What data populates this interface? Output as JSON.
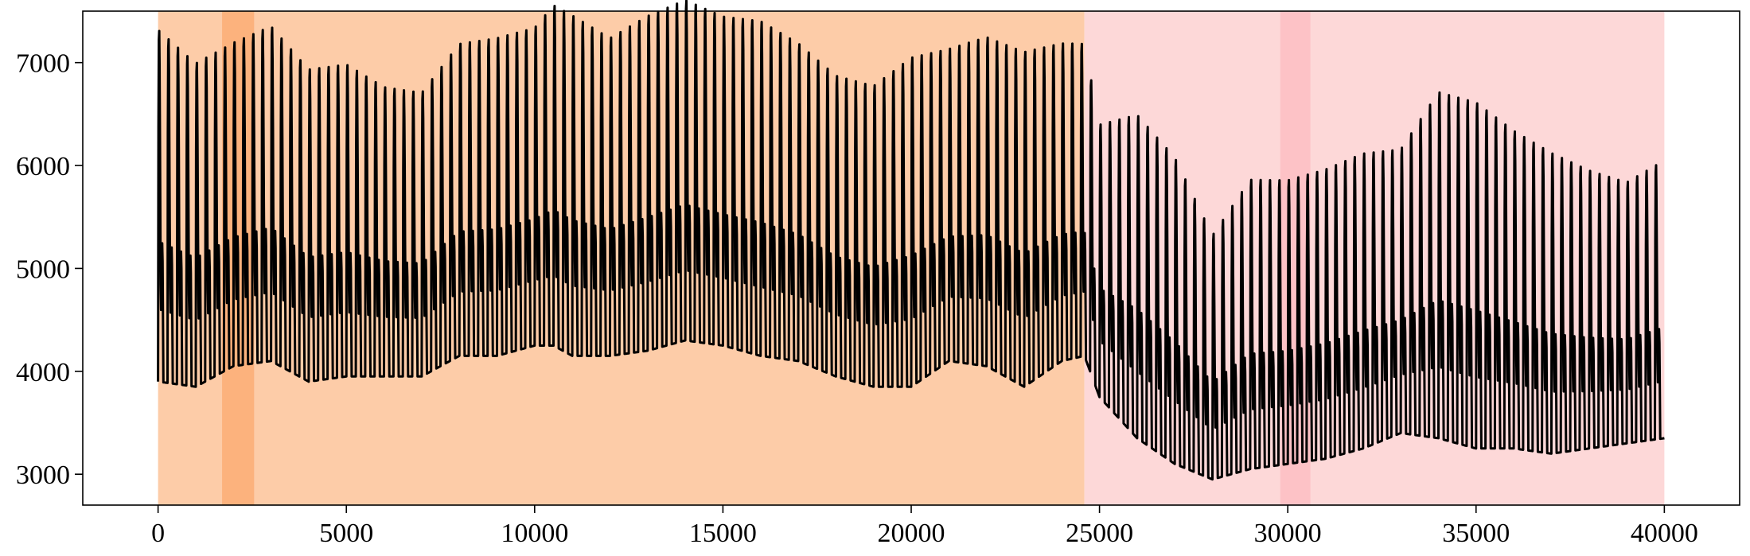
{
  "chart_data": {
    "type": "line",
    "title": "",
    "xlabel": "",
    "ylabel": "",
    "xlim": [
      -2000,
      42000
    ],
    "ylim": [
      2700,
      7500
    ],
    "x_ticks": [
      {
        "value": 0,
        "label": "0"
      },
      {
        "value": 5000,
        "label": "5000"
      },
      {
        "value": 10000,
        "label": "10000"
      },
      {
        "value": 15000,
        "label": "15000"
      },
      {
        "value": 20000,
        "label": "20000"
      },
      {
        "value": 25000,
        "label": "25000"
      },
      {
        "value": 30000,
        "label": "30000"
      },
      {
        "value": 35000,
        "label": "35000"
      },
      {
        "value": 40000,
        "label": "40000"
      }
    ],
    "y_ticks": [
      {
        "value": 3000,
        "label": "3000"
      },
      {
        "value": 4000,
        "label": "4000"
      },
      {
        "value": 5000,
        "label": "5000"
      },
      {
        "value": 6000,
        "label": "6000"
      },
      {
        "value": 7000,
        "label": "7000"
      }
    ],
    "grid": false,
    "legend": "none",
    "shaded_regions": [
      {
        "x_start": 0,
        "x_end": 24600,
        "color": "#fdcca8"
      },
      {
        "x_start": 1700,
        "x_end": 2550,
        "color": "#fcb27d"
      },
      {
        "x_start": 24600,
        "x_end": 40000,
        "color": "#fdd8d8"
      },
      {
        "x_start": 29800,
        "x_end": 30600,
        "color": "#fdc2c6"
      }
    ],
    "series": [
      {
        "color": "#000000",
        "cycle_length": 250,
        "x_range": [
          0,
          40000
        ],
        "envelope_x": [
          0,
          1000,
          2000,
          3000,
          4000,
          5000,
          6000,
          7000,
          8000,
          9000,
          10000,
          10500,
          11000,
          12000,
          13000,
          14000,
          15000,
          16000,
          17000,
          18000,
          19000,
          20000,
          21000,
          22000,
          23000,
          24000,
          24600,
          25000,
          26000,
          27000,
          28000,
          29000,
          30000,
          31000,
          32000,
          33000,
          34000,
          35000,
          36000,
          37000,
          38000,
          39000,
          40000
        ],
        "envelope_peak": [
          7000,
          6700,
          6900,
          7050,
          6650,
          6700,
          6500,
          6450,
          6900,
          6950,
          7050,
          7250,
          7150,
          6950,
          7150,
          7300,
          7150,
          7100,
          6900,
          6600,
          6500,
          6750,
          6850,
          6950,
          6800,
          6900,
          6900,
          6150,
          6200,
          5800,
          5100,
          5600,
          5600,
          5700,
          5850,
          5900,
          6400,
          6300,
          6050,
          5850,
          5700,
          5600,
          5800
        ],
        "envelope_trough": [
          3900,
          3850,
          4050,
          4100,
          3900,
          3950,
          3950,
          3950,
          4150,
          4150,
          4250,
          4250,
          4150,
          4150,
          4200,
          4300,
          4250,
          4150,
          4100,
          3950,
          3850,
          3850,
          4100,
          4050,
          3850,
          4100,
          4150,
          3750,
          3350,
          3100,
          2950,
          3050,
          3100,
          3150,
          3250,
          3400,
          3350,
          3250,
          3250,
          3200,
          3250,
          3300,
          3350
        ]
      }
    ]
  }
}
